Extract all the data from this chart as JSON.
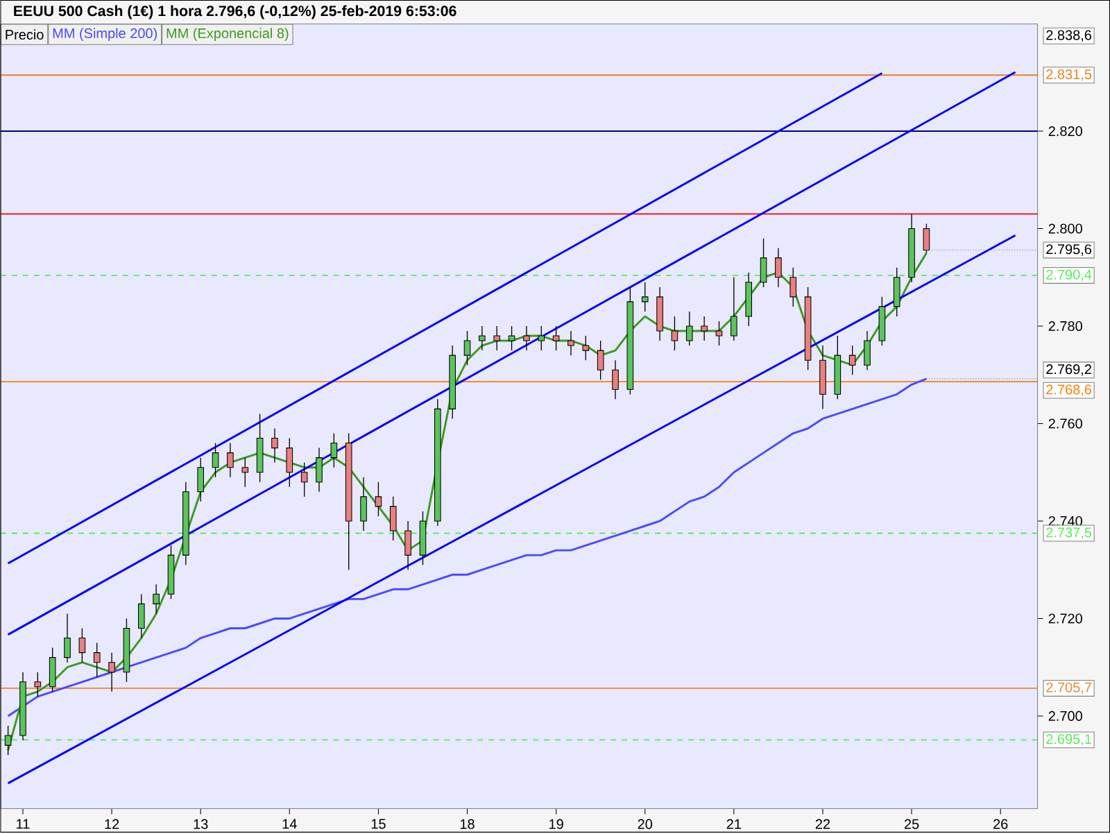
{
  "chart_data": {
    "type": "candlestick",
    "title": "EEUU 500 Cash (1€)   1 hora   2.796,6 (-0,12%)   25-feb-2019 6:53:06",
    "ylim": [
      2681,
      2842
    ],
    "categories": [
      null,
      "11",
      null,
      null,
      null,
      null,
      null,
      "12",
      null,
      null,
      null,
      null,
      null,
      "13",
      null,
      null,
      null,
      null,
      null,
      "14",
      null,
      null,
      null,
      null,
      null,
      "15",
      null,
      null,
      null,
      null,
      null,
      "18",
      null,
      null,
      null,
      null,
      null,
      "19",
      null,
      null,
      null,
      null,
      null,
      "20",
      null,
      null,
      null,
      null,
      null,
      "21",
      null,
      null,
      null,
      null,
      null,
      "22",
      null,
      null,
      null,
      null,
      null,
      "25",
      null,
      null,
      null,
      null,
      null,
      "26",
      null,
      null
    ],
    "yticks": [
      {
        "value": 2700,
        "label": "2.700"
      },
      {
        "value": 2720,
        "label": "2.720"
      },
      {
        "value": 2740,
        "label": "2.740"
      },
      {
        "value": 2760,
        "label": "2.760"
      },
      {
        "value": 2780,
        "label": "2.780"
      },
      {
        "value": 2800,
        "label": "2.800"
      },
      {
        "value": 2820,
        "label": "2.820"
      }
    ],
    "legend": "top left",
    "series": [
      {
        "name": "Precio",
        "ohlc": [
          [
            2694,
            2698,
            2692,
            2696
          ],
          [
            2696,
            2709,
            2695,
            2707
          ],
          [
            2707,
            2709,
            2704,
            2706
          ],
          [
            2706,
            2714,
            2705,
            2712
          ],
          [
            2712,
            2721,
            2711,
            2716
          ],
          [
            2716,
            2718,
            2711,
            2713
          ],
          [
            2713,
            2715,
            2708,
            2711
          ],
          [
            2711,
            2713,
            2705,
            2709
          ],
          [
            2709,
            2720,
            2707,
            2718
          ],
          [
            2718,
            2725,
            2716,
            2723
          ],
          [
            2723,
            2727,
            2721,
            2725
          ],
          [
            2725,
            2735,
            2724,
            2733
          ],
          [
            2733,
            2748,
            2731,
            2746
          ],
          [
            2746,
            2753,
            2744,
            2751
          ],
          [
            2751,
            2756,
            2749,
            2754
          ],
          [
            2754,
            2756,
            2749,
            2751
          ],
          [
            2751,
            2753,
            2747,
            2750
          ],
          [
            2750,
            2762,
            2748,
            2757
          ],
          [
            2757,
            2759,
            2752,
            2755
          ],
          [
            2755,
            2757,
            2747,
            2750
          ],
          [
            2750,
            2752,
            2745,
            2748
          ],
          [
            2748,
            2755,
            2746,
            2753
          ],
          [
            2753,
            2758,
            2751,
            2756
          ],
          [
            2756,
            2758,
            2730,
            2740
          ],
          [
            2740,
            2749,
            2738,
            2745
          ],
          [
            2745,
            2748,
            2741,
            2743
          ],
          [
            2743,
            2745,
            2736,
            2738
          ],
          [
            2738,
            2740,
            2730,
            2733
          ],
          [
            2733,
            2742,
            2731,
            2740
          ],
          [
            2740,
            2765,
            2739,
            2763
          ],
          [
            2763,
            2776,
            2761,
            2774
          ],
          [
            2774,
            2779,
            2772,
            2777
          ],
          [
            2777,
            2780,
            2775,
            2778
          ],
          [
            2778,
            2780,
            2775,
            2777
          ],
          [
            2777,
            2780,
            2775,
            2778
          ],
          [
            2778,
            2780,
            2775,
            2777
          ],
          [
            2777,
            2780,
            2775,
            2778
          ],
          [
            2778,
            2780,
            2775,
            2777
          ],
          [
            2777,
            2779,
            2774,
            2776
          ],
          [
            2776,
            2778,
            2773,
            2775
          ],
          [
            2775,
            2777,
            2769,
            2771
          ],
          [
            2771,
            2773,
            2765,
            2767
          ],
          [
            2767,
            2788,
            2766,
            2785
          ],
          [
            2785,
            2789,
            2783,
            2786
          ],
          [
            2786,
            2788,
            2777,
            2779
          ],
          [
            2779,
            2782,
            2775,
            2777
          ],
          [
            2777,
            2783,
            2776,
            2780
          ],
          [
            2780,
            2782,
            2777,
            2779
          ],
          [
            2779,
            2781,
            2776,
            2778
          ],
          [
            2778,
            2790,
            2777,
            2782
          ],
          [
            2782,
            2791,
            2780,
            2789
          ],
          [
            2789,
            2798,
            2788,
            2794
          ],
          [
            2794,
            2796,
            2788,
            2790
          ],
          [
            2790,
            2792,
            2784,
            2786
          ],
          [
            2786,
            2788,
            2771,
            2773
          ],
          [
            2773,
            2776,
            2763,
            2766
          ],
          [
            2766,
            2778,
            2765,
            2774
          ],
          [
            2774,
            2776,
            2770,
            2772
          ],
          [
            2772,
            2779,
            2771,
            2777
          ],
          [
            2777,
            2786,
            2776,
            2784
          ],
          [
            2784,
            2792,
            2782,
            2790
          ],
          [
            2790,
            2803,
            2789,
            2800
          ],
          [
            2800,
            2801,
            2795,
            2795.6
          ],
          null,
          null,
          null,
          null,
          null,
          null,
          null
        ],
        "value_labels": [
          null,
          null,
          null,
          null,
          null,
          null,
          null,
          null,
          null,
          null,
          null,
          null,
          null,
          null,
          null,
          null,
          null,
          null,
          null,
          null,
          null,
          null,
          null,
          null,
          null,
          null,
          null,
          null,
          null,
          null,
          null,
          null,
          null,
          null,
          null,
          null,
          null,
          null,
          null,
          null,
          null,
          null,
          null,
          null,
          null,
          null,
          null,
          null,
          null,
          null,
          null,
          null,
          null,
          null,
          null,
          null,
          null,
          null,
          null,
          null,
          null,
          null,
          "2.795,6",
          null,
          null,
          null,
          null,
          null,
          null,
          null
        ]
      },
      {
        "name": "MM (Simple 200)",
        "type": "line",
        "color": "#4a4aff",
        "values": [
          2700,
          2702,
          2704,
          2705,
          2706,
          2707,
          2708,
          2709,
          2710,
          2711,
          2712,
          2713,
          2714,
          2716,
          2717,
          2718,
          2718,
          2719,
          2720,
          2720,
          2721,
          2722,
          2723,
          2724,
          2724,
          2725,
          2726,
          2726,
          2727,
          2728,
          2729,
          2729,
          2730,
          2731,
          2732,
          2733,
          2733,
          2734,
          2734,
          2735,
          2736,
          2737,
          2738,
          2739,
          2740,
          2742,
          2744,
          2745,
          2747,
          2750,
          2752,
          2754,
          2756,
          2758,
          2759,
          2761,
          2762,
          2763,
          2764,
          2765,
          2766,
          2768,
          2769.2,
          null,
          null,
          null,
          null,
          null,
          null,
          null
        ],
        "value_labels": [
          null,
          null,
          null,
          null,
          null,
          null,
          null,
          null,
          null,
          null,
          null,
          null,
          null,
          null,
          null,
          null,
          null,
          null,
          null,
          null,
          null,
          null,
          null,
          null,
          null,
          null,
          null,
          null,
          null,
          null,
          null,
          null,
          null,
          null,
          null,
          null,
          null,
          null,
          null,
          null,
          null,
          null,
          null,
          null,
          null,
          null,
          null,
          null,
          null,
          null,
          null,
          null,
          null,
          null,
          null,
          null,
          null,
          null,
          null,
          null,
          null,
          null,
          "2.769,2",
          null,
          null,
          null,
          null,
          null,
          null,
          null
        ]
      },
      {
        "name": "MM (Exponencial 8)",
        "type": "line",
        "color": "#3c9a1e",
        "values": [
          2693,
          2704,
          2705,
          2707,
          2710,
          2711,
          2710,
          2709,
          2712,
          2716,
          2721,
          2728,
          2737,
          2746,
          2750,
          2752,
          2753,
          2754,
          2753,
          2752,
          2751,
          2751,
          2753,
          2751,
          2747,
          2743,
          2739,
          2734,
          2736,
          2752,
          2767,
          2773,
          2776,
          2777,
          2777,
          2778,
          2778,
          2777,
          2777,
          2776,
          2774,
          2775,
          2779,
          2782,
          2780,
          2779,
          2779,
          2779,
          2779,
          2782,
          2786,
          2790,
          2791,
          2788,
          2779,
          2774,
          2773,
          2772,
          2776,
          2781,
          2784,
          2790,
          2795,
          null,
          null,
          null,
          null,
          null,
          null,
          null
        ]
      },
      {
        "type": "line",
        "color": "#0000ff",
        "values": [
          2731.3,
          null,
          null,
          null,
          null,
          null,
          null,
          null,
          null,
          null,
          null,
          null,
          null,
          null,
          null,
          null,
          null,
          null,
          null,
          null,
          null,
          null,
          null,
          null,
          null,
          null,
          null,
          null,
          null,
          null,
          null,
          null,
          null,
          null,
          null,
          null,
          null,
          null,
          null,
          null,
          null,
          null,
          null,
          null,
          null,
          null,
          null,
          null,
          null,
          null,
          null,
          null,
          null,
          null,
          null,
          null,
          null,
          null,
          null,
          2831.9,
          null,
          null,
          null,
          null,
          null,
          null,
          null,
          null,
          null,
          null
        ]
      },
      {
        "type": "line",
        "color": "#0000ff",
        "values": [
          2716.7,
          null,
          null,
          null,
          null,
          null,
          null,
          null,
          null,
          null,
          null,
          null,
          null,
          null,
          null,
          null,
          null,
          null,
          null,
          null,
          null,
          null,
          null,
          null,
          null,
          null,
          null,
          null,
          null,
          null,
          null,
          null,
          null,
          null,
          null,
          null,
          null,
          null,
          null,
          null,
          null,
          null,
          null,
          null,
          null,
          null,
          null,
          null,
          null,
          null,
          null,
          null,
          null,
          null,
          null,
          null,
          null,
          null,
          null,
          null,
          null,
          null,
          null,
          null,
          null,
          null,
          null,
          null,
          2832.1,
          null
        ]
      },
      {
        "type": "line",
        "color": "#0000ff",
        "values": [
          2686.2,
          null,
          null,
          null,
          null,
          null,
          null,
          null,
          null,
          null,
          null,
          null,
          null,
          null,
          null,
          null,
          null,
          null,
          null,
          null,
          null,
          null,
          null,
          null,
          null,
          null,
          null,
          null,
          null,
          null,
          null,
          null,
          null,
          null,
          null,
          null,
          null,
          null,
          null,
          null,
          null,
          null,
          null,
          null,
          null,
          null,
          null,
          null,
          null,
          null,
          null,
          null,
          null,
          null,
          null,
          null,
          null,
          null,
          null,
          null,
          null,
          null,
          null,
          null,
          null,
          null,
          null,
          null,
          2798.6,
          null
        ]
      }
    ],
    "ref_lines": [
      {
        "axis": "y",
        "value": 2831.5,
        "label": "2.831,5",
        "color": "#f07f20"
      },
      {
        "axis": "y",
        "value": 2820,
        "color": "#000080"
      },
      {
        "axis": "y",
        "value": 2803,
        "color": "#ff0000"
      },
      {
        "axis": "y",
        "value": 2790.4,
        "label": "2.790,4",
        "color": "#55ee55",
        "line_style": "dashed"
      },
      {
        "axis": "y",
        "value": 2768.6,
        "label": "2.768,6",
        "color": "#ff8000"
      },
      {
        "axis": "y",
        "value": 2737.5,
        "label": "2.737,5",
        "color": "#55ee55",
        "line_style": "dashed"
      },
      {
        "axis": "y",
        "value": 2705.7,
        "label": "2.705,7",
        "color": "#e8892f"
      },
      {
        "axis": "y",
        "value": 2695.1,
        "label": "2.695,1",
        "color": "#55ee55",
        "line_style": "dashed"
      }
    ],
    "annotations": [
      "2.838,6"
    ]
  }
}
